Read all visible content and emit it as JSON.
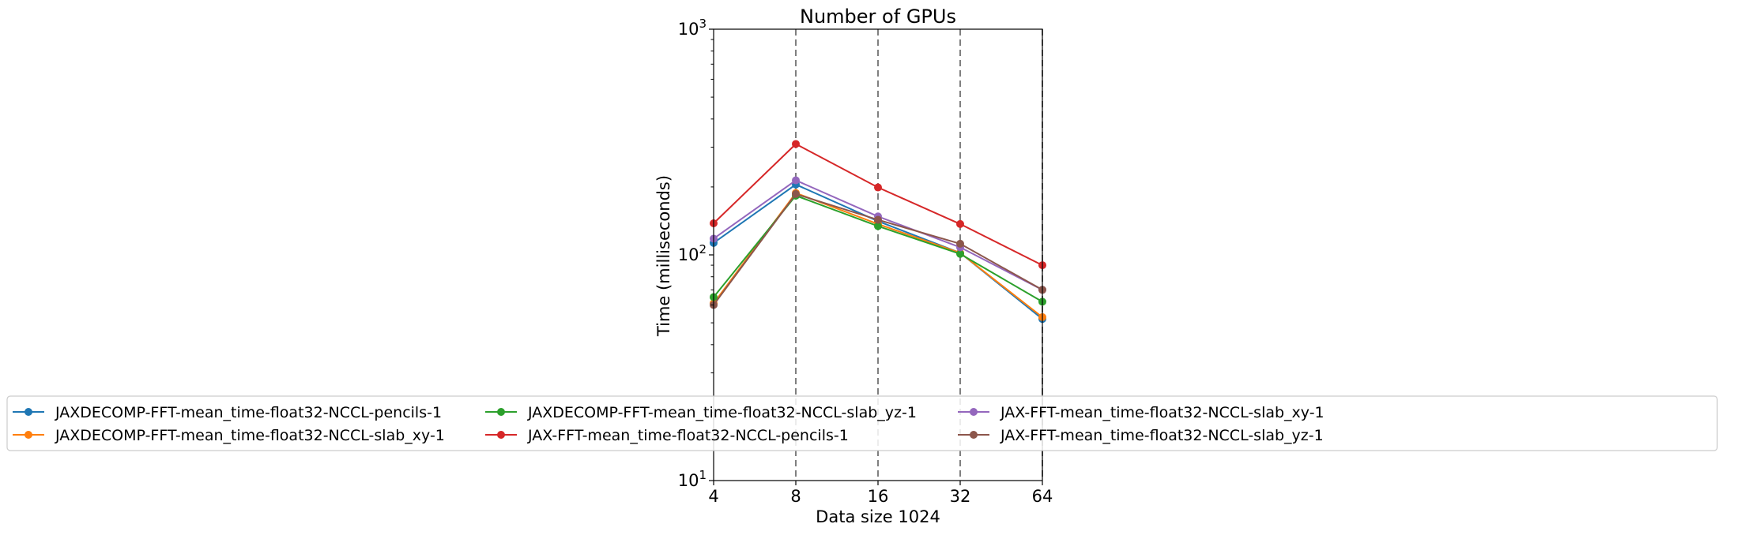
{
  "chart_data": {
    "type": "line",
    "title": "Number of GPUs",
    "xlabel": "Data size 1024",
    "ylabel": "Time (milliseconds)",
    "x": [
      4,
      8,
      16,
      32,
      64
    ],
    "x_scale": "log2",
    "y_scale": "log10",
    "xlim": [
      4,
      64
    ],
    "ylim": [
      10,
      1000
    ],
    "x_ticks": [
      "4",
      "8",
      "16",
      "32",
      "64"
    ],
    "y_ticks": [
      {
        "value": 10,
        "base": "10",
        "exp": "1"
      },
      {
        "value": 100,
        "base": "10",
        "exp": "2"
      },
      {
        "value": 1000,
        "base": "10",
        "exp": "3"
      }
    ],
    "vlines": [
      8,
      16,
      32,
      64
    ],
    "grid": false,
    "legend_position": "below-center",
    "series": [
      {
        "name": "JAXDECOMP-FFT-mean_time-float32-NCCL-pencils-1",
        "color": "#1f77b4",
        "values": [
          113,
          205,
          141,
          102,
          52
        ]
      },
      {
        "name": "JAXDECOMP-FFT-mean_time-float32-NCCL-slab_xy-1",
        "color": "#ff7f0e",
        "values": [
          61,
          188,
          137,
          102,
          53
        ]
      },
      {
        "name": "JAXDECOMP-FFT-mean_time-float32-NCCL-slab_yz-1",
        "color": "#2ca02c",
        "values": [
          65,
          183,
          134,
          101,
          62
        ]
      },
      {
        "name": "JAX-FFT-mean_time-float32-NCCL-pencils-1",
        "color": "#d62728",
        "values": [
          138,
          310,
          199,
          137,
          90
        ]
      },
      {
        "name": "JAX-FFT-mean_time-float32-NCCL-slab_xy-1",
        "color": "#9467bd",
        "values": [
          118,
          214,
          148,
          108,
          70
        ]
      },
      {
        "name": "JAX-FFT-mean_time-float32-NCCL-slab_yz-1",
        "color": "#8c564b",
        "values": [
          60,
          186,
          143,
          112,
          70
        ]
      }
    ]
  }
}
